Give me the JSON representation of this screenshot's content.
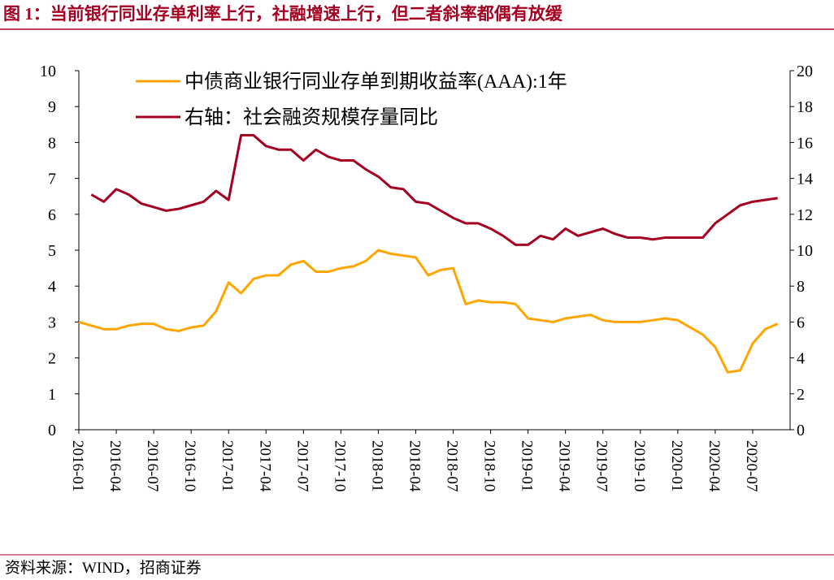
{
  "chart_data": {
    "type": "line",
    "title": "图 1：当前银行同业存单利率上行，社融增速上行，但二者斜率都偶有放缓",
    "source": "资料来源：WIND，招商证券",
    "x": [
      "2016-01",
      "2016-02",
      "2016-03",
      "2016-04",
      "2016-05",
      "2016-06",
      "2016-07",
      "2016-08",
      "2016-09",
      "2016-10",
      "2016-11",
      "2016-12",
      "2017-01",
      "2017-02",
      "2017-03",
      "2017-04",
      "2017-05",
      "2017-06",
      "2017-07",
      "2017-08",
      "2017-09",
      "2017-10",
      "2017-11",
      "2017-12",
      "2018-01",
      "2018-02",
      "2018-03",
      "2018-04",
      "2018-05",
      "2018-06",
      "2018-07",
      "2018-08",
      "2018-09",
      "2018-10",
      "2018-11",
      "2018-12",
      "2019-01",
      "2019-02",
      "2019-03",
      "2019-04",
      "2019-05",
      "2019-06",
      "2019-07",
      "2019-08",
      "2019-09",
      "2019-10",
      "2019-11",
      "2019-12",
      "2020-01",
      "2020-02",
      "2020-03",
      "2020-04",
      "2020-05",
      "2020-06",
      "2020-07",
      "2020-08",
      "2020-09"
    ],
    "xlim": [
      "2016-01",
      "2020-10"
    ],
    "xticks": [
      "2016-01",
      "2016-04",
      "2016-07",
      "2016-10",
      "2017-01",
      "2017-04",
      "2017-07",
      "2017-10",
      "2018-01",
      "2018-04",
      "2018-07",
      "2018-10",
      "2019-01",
      "2019-04",
      "2019-07",
      "2019-10",
      "2020-01",
      "2020-04",
      "2020-07"
    ],
    "ylim": [
      0,
      10
    ],
    "yticks": [
      0,
      1,
      2,
      3,
      4,
      5,
      6,
      7,
      8,
      9,
      10
    ],
    "y2lim": [
      0,
      20
    ],
    "y2ticks": [
      0,
      2,
      4,
      6,
      8,
      10,
      12,
      14,
      16,
      18,
      20
    ],
    "legend": "upper left",
    "grid": false,
    "series": [
      {
        "name": "中债商业银行同业存单到期收益率(AAA):1年",
        "color": "#FFA500",
        "axis": "y",
        "values": [
          3.0,
          2.9,
          2.8,
          2.8,
          2.9,
          2.95,
          2.95,
          2.8,
          2.75,
          2.85,
          2.9,
          3.3,
          4.1,
          3.8,
          4.2,
          4.3,
          4.3,
          4.6,
          4.7,
          4.4,
          4.4,
          4.5,
          4.55,
          4.7,
          5.0,
          4.9,
          4.85,
          4.8,
          4.3,
          4.45,
          4.5,
          3.5,
          3.6,
          3.55,
          3.55,
          3.5,
          3.1,
          3.05,
          3.0,
          3.1,
          3.15,
          3.2,
          3.05,
          3.0,
          3.0,
          3.0,
          3.05,
          3.1,
          3.05,
          2.85,
          2.65,
          2.3,
          1.6,
          1.65,
          2.4,
          2.8,
          2.95
        ]
      },
      {
        "name": "右轴：社会融资规模存量同比",
        "color": "#A50021",
        "axis": "y2",
        "values": [
          null,
          13.1,
          12.7,
          13.4,
          13.1,
          12.6,
          12.4,
          12.2,
          12.3,
          12.5,
          12.7,
          13.3,
          12.8,
          16.4,
          16.4,
          15.8,
          15.6,
          15.6,
          15.0,
          15.6,
          15.2,
          15.0,
          15.0,
          14.5,
          14.1,
          13.5,
          13.4,
          12.7,
          12.6,
          12.2,
          11.8,
          11.5,
          11.5,
          11.2,
          10.8,
          10.3,
          10.3,
          10.8,
          10.6,
          11.2,
          10.8,
          11.0,
          11.2,
          10.9,
          10.7,
          10.7,
          10.6,
          10.7,
          10.7,
          10.7,
          10.7,
          11.5,
          12.0,
          12.5,
          12.7,
          12.8,
          12.9
        ]
      }
    ]
  }
}
